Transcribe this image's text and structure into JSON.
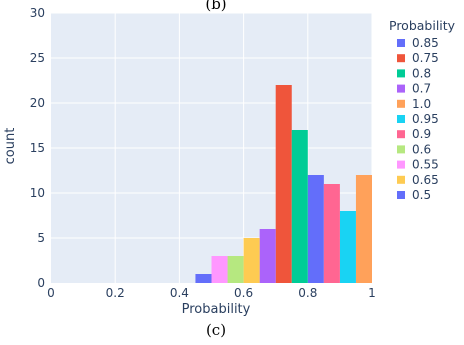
{
  "chart_data": {
    "type": "bar",
    "subtype": "histogram",
    "top_caption": "(b)",
    "caption": "(c)",
    "xlabel": "Probability",
    "ylabel": "count",
    "xlim": [
      0,
      1.0
    ],
    "ylim": [
      0,
      30
    ],
    "x_ticks": [
      {
        "value": 0,
        "label": "0"
      },
      {
        "value": 0.2,
        "label": "0.2"
      },
      {
        "value": 0.4,
        "label": "0.4"
      },
      {
        "value": 0.6,
        "label": "0.6"
      },
      {
        "value": 0.8,
        "label": "0.8"
      },
      {
        "value": 1.0,
        "label": "1"
      }
    ],
    "y_ticks": [
      {
        "value": 0,
        "label": "0"
      },
      {
        "value": 5,
        "label": "5"
      },
      {
        "value": 10,
        "label": "10"
      },
      {
        "value": 15,
        "label": "15"
      },
      {
        "value": 20,
        "label": "20"
      },
      {
        "value": 25,
        "label": "25"
      },
      {
        "value": 30,
        "label": "30"
      }
    ],
    "grid": true,
    "background_color": "#e5ecf6",
    "legend_title": "Probability",
    "legend_position": "right",
    "series": [
      {
        "name": "0.85",
        "color": "#636efa",
        "x_start": 0.8,
        "x_end": 0.85,
        "value": 12
      },
      {
        "name": "0.75",
        "color": "#ef553b",
        "x_start": 0.7,
        "x_end": 0.75,
        "value": 22
      },
      {
        "name": "0.8",
        "color": "#00cc96",
        "x_start": 0.75,
        "x_end": 0.8,
        "value": 17
      },
      {
        "name": "0.7",
        "color": "#ab63fa",
        "x_start": 0.65,
        "x_end": 0.7,
        "value": 6
      },
      {
        "name": "1.0",
        "color": "#ffa15a",
        "x_start": 0.95,
        "x_end": 1.0,
        "value": 12
      },
      {
        "name": "0.95",
        "color": "#19d3f3",
        "x_start": 0.9,
        "x_end": 0.95,
        "value": 8
      },
      {
        "name": "0.9",
        "color": "#ff6692",
        "x_start": 0.85,
        "x_end": 0.9,
        "value": 11
      },
      {
        "name": "0.6",
        "color": "#b6e880",
        "x_start": 0.55,
        "x_end": 0.6,
        "value": 3
      },
      {
        "name": "0.55",
        "color": "#ff97ff",
        "x_start": 0.5,
        "x_end": 0.55,
        "value": 3
      },
      {
        "name": "0.65",
        "color": "#fecb52",
        "x_start": 0.6,
        "x_end": 0.65,
        "value": 5
      },
      {
        "name": "0.5",
        "color": "#636efa",
        "x_start": 0.45,
        "x_end": 0.5,
        "value": 1
      }
    ]
  }
}
